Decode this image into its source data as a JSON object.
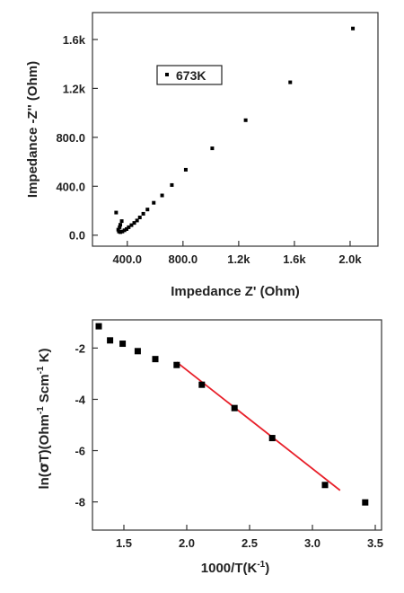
{
  "chart_data": [
    {
      "type": "scatter",
      "xlabel": "Impedance Z' (Ohm)",
      "ylabel": "Impedance -Z'' (Ohm)",
      "xlim": [
        150,
        2200
      ],
      "ylim": [
        -90,
        1820
      ],
      "xticks": [
        {
          "value": 400,
          "label": "400.0"
        },
        {
          "value": 800,
          "label": "800.0"
        },
        {
          "value": 1200,
          "label": "1.2k"
        },
        {
          "value": 1600,
          "label": "1.6k"
        },
        {
          "value": 2000,
          "label": "2.0k"
        }
      ],
      "yticks": [
        {
          "value": 0,
          "label": "0.0"
        },
        {
          "value": 400,
          "label": "400.0"
        },
        {
          "value": 800,
          "label": "800.0"
        },
        {
          "value": 1200,
          "label": "1.2k"
        },
        {
          "value": 1600,
          "label": "1.6k"
        }
      ],
      "series": [
        {
          "name": "673K",
          "marker_color": "#000000",
          "points": [
            {
              "x": 2020,
              "y": 1690
            },
            {
              "x": 1570,
              "y": 1250
            },
            {
              "x": 1250,
              "y": 940
            },
            {
              "x": 1010,
              "y": 710
            },
            {
              "x": 820,
              "y": 535
            },
            {
              "x": 720,
              "y": 410
            },
            {
              "x": 650,
              "y": 325
            },
            {
              "x": 590,
              "y": 265
            },
            {
              "x": 545,
              "y": 210
            },
            {
              "x": 515,
              "y": 175
            },
            {
              "x": 490,
              "y": 145
            },
            {
              "x": 470,
              "y": 120
            },
            {
              "x": 450,
              "y": 100
            },
            {
              "x": 430,
              "y": 82
            },
            {
              "x": 410,
              "y": 65
            },
            {
              "x": 395,
              "y": 50
            },
            {
              "x": 380,
              "y": 40
            },
            {
              "x": 365,
              "y": 30
            },
            {
              "x": 350,
              "y": 25
            },
            {
              "x": 340,
              "y": 30
            },
            {
              "x": 335,
              "y": 45
            },
            {
              "x": 345,
              "y": 65
            },
            {
              "x": 350,
              "y": 85
            },
            {
              "x": 360,
              "y": 115
            },
            {
              "x": 320,
              "y": 185
            }
          ]
        }
      ]
    },
    {
      "type": "scatter",
      "xlabel": "1000/T(K-1)",
      "ylabel": "ln(σT)(Ohm-1 Scm-1 K)",
      "xlim": [
        1.25,
        3.55
      ],
      "ylim": [
        -9.1,
        -0.9
      ],
      "xticks": [
        {
          "value": 1.5,
          "label": "1.5"
        },
        {
          "value": 2.0,
          "label": "2.0"
        },
        {
          "value": 2.5,
          "label": "2.5"
        },
        {
          "value": 3.0,
          "label": "3.0"
        },
        {
          "value": 3.5,
          "label": "3.5"
        }
      ],
      "yticks": [
        {
          "value": -2,
          "label": "-2"
        },
        {
          "value": -4,
          "label": "-4"
        },
        {
          "value": -6,
          "label": "-6"
        },
        {
          "value": -8,
          "label": "-8"
        }
      ],
      "series": [
        {
          "marker_color": "#000000",
          "points": [
            {
              "x": 1.3,
              "y": -1.15
            },
            {
              "x": 1.39,
              "y": -1.7
            },
            {
              "x": 1.49,
              "y": -1.83
            },
            {
              "x": 1.61,
              "y": -2.12
            },
            {
              "x": 1.75,
              "y": -2.43
            },
            {
              "x": 1.92,
              "y": -2.66
            },
            {
              "x": 2.12,
              "y": -3.43
            },
            {
              "x": 2.38,
              "y": -4.34
            },
            {
              "x": 2.68,
              "y": -5.51
            },
            {
              "x": 3.1,
              "y": -7.34
            },
            {
              "x": 3.42,
              "y": -8.02
            }
          ]
        }
      ],
      "fit_line": {
        "color": "#e8202a",
        "x": [
          1.92,
          3.22
        ],
        "y": [
          -2.55,
          -7.55
        ]
      }
    }
  ]
}
